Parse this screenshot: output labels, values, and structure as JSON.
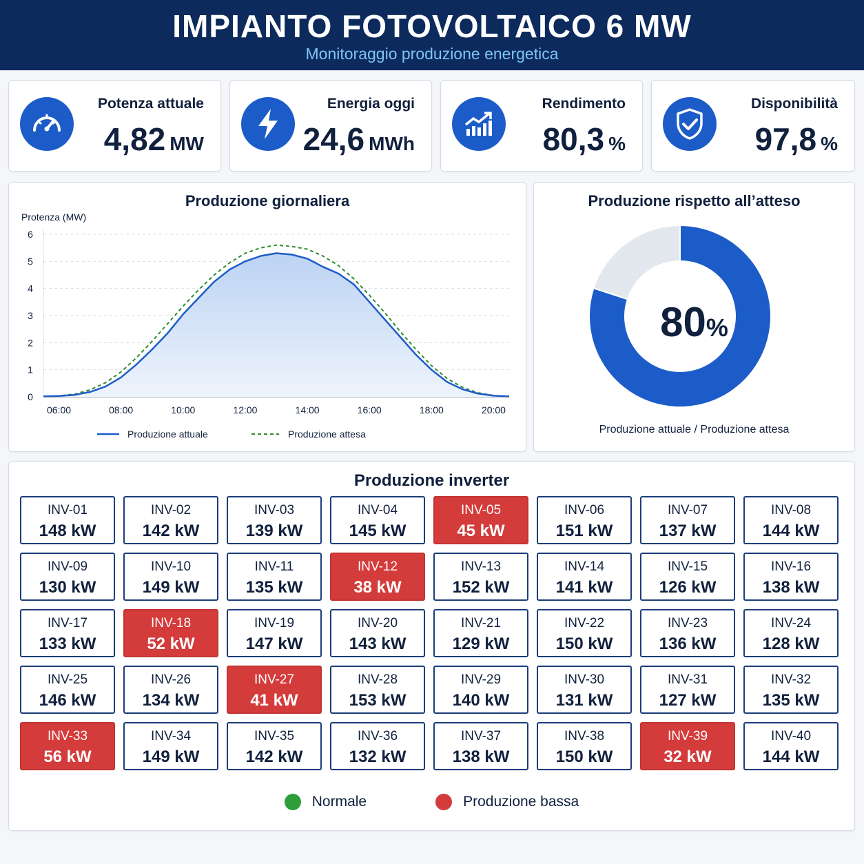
{
  "header": {
    "title": "IMPIANTO FOTOVOLTAICO 6 MW",
    "subtitle": "Monitoraggio produzione energetica"
  },
  "kpis": [
    {
      "label": "Potenza attuale",
      "value": "4,82",
      "unit": "MW",
      "icon": "gauge-icon"
    },
    {
      "label": "Energia oggi",
      "value": "24,6",
      "unit": "MWh",
      "icon": "lightning-icon"
    },
    {
      "label": "Rendimento",
      "value": "80,3",
      "unit": "%",
      "icon": "trend-chart-icon"
    },
    {
      "label": "Disponibilità",
      "value": "97,8",
      "unit": "%",
      "icon": "shield-check-icon"
    }
  ],
  "colors": {
    "accent": "#1c5cc8",
    "header": "#0d2a5c",
    "low": "#d43b3b",
    "normal": "#2e9e3a",
    "expected": "#2e8b2e"
  },
  "chart_data": [
    {
      "type": "area",
      "title": "Produzione giornaliera",
      "ylabel": "Protenza (MW)",
      "xlabel": "",
      "ylim": [
        0,
        6
      ],
      "yticks": [
        "0",
        "1",
        "2",
        "3",
        "4",
        "5",
        "6"
      ],
      "xticks": [
        "06:00",
        "08:00",
        "10:00",
        "12:00",
        "14:00",
        "16:00",
        "18:00",
        "20:00"
      ],
      "grid": true,
      "legend": "bottom",
      "x": [
        "05:30",
        "06:00",
        "06:30",
        "07:00",
        "07:30",
        "08:00",
        "08:30",
        "09:00",
        "09:30",
        "10:00",
        "10:30",
        "11:00",
        "11:30",
        "12:00",
        "12:30",
        "13:00",
        "13:30",
        "14:00",
        "14:30",
        "15:00",
        "15:30",
        "16:00",
        "16:30",
        "17:00",
        "17:30",
        "18:00",
        "18:30",
        "19:00",
        "19:30",
        "20:00",
        "20:30"
      ],
      "series": [
        {
          "name": "Produzione attuale",
          "values": [
            0.02,
            0.03,
            0.07,
            0.18,
            0.38,
            0.72,
            1.2,
            1.75,
            2.35,
            3.05,
            3.65,
            4.25,
            4.7,
            5.0,
            5.2,
            5.3,
            5.25,
            5.1,
            4.8,
            4.55,
            4.15,
            3.5,
            2.85,
            2.2,
            1.55,
            1.0,
            0.55,
            0.28,
            0.12,
            0.04,
            0.02
          ]
        },
        {
          "name": "Produzione attesa",
          "values": [
            0.02,
            0.04,
            0.1,
            0.26,
            0.52,
            0.92,
            1.45,
            2.05,
            2.7,
            3.35,
            3.95,
            4.5,
            4.95,
            5.3,
            5.5,
            5.6,
            5.55,
            5.45,
            5.2,
            4.85,
            4.35,
            3.75,
            3.1,
            2.4,
            1.75,
            1.15,
            0.68,
            0.35,
            0.15,
            0.05,
            0.02
          ]
        }
      ]
    },
    {
      "type": "pie",
      "title": "Produzione rispetto all’atteso",
      "center_value": "80",
      "center_unit": "%",
      "caption": "Produzione attuale / Produzione attesa",
      "values": [
        80,
        20
      ]
    }
  ],
  "inverters": {
    "title": "Produzione inverter",
    "items": [
      {
        "id": "INV-01",
        "value": "148 kW",
        "low": false
      },
      {
        "id": "INV-02",
        "value": "142 kW",
        "low": false
      },
      {
        "id": "INV-03",
        "value": "139 kW",
        "low": false
      },
      {
        "id": "INV-04",
        "value": "145 kW",
        "low": false
      },
      {
        "id": "INV-05",
        "value": "45 kW",
        "low": true
      },
      {
        "id": "INV-06",
        "value": "151 kW",
        "low": false
      },
      {
        "id": "INV-07",
        "value": "137 kW",
        "low": false
      },
      {
        "id": "INV-08",
        "value": "144 kW",
        "low": false
      },
      {
        "id": "INV-09",
        "value": "130 kW",
        "low": false
      },
      {
        "id": "INV-10",
        "value": "149 kW",
        "low": false
      },
      {
        "id": "INV-11",
        "value": "135 kW",
        "low": false
      },
      {
        "id": "INV-12",
        "value": "38 kW",
        "low": true
      },
      {
        "id": "INV-13",
        "value": "152 kW",
        "low": false
      },
      {
        "id": "INV-14",
        "value": "141 kW",
        "low": false
      },
      {
        "id": "INV-15",
        "value": "126 kW",
        "low": false
      },
      {
        "id": "INV-16",
        "value": "138 kW",
        "low": false
      },
      {
        "id": "INV-17",
        "value": "133 kW",
        "low": false
      },
      {
        "id": "INV-18",
        "value": "52 kW",
        "low": true
      },
      {
        "id": "INV-19",
        "value": "147 kW",
        "low": false
      },
      {
        "id": "INV-20",
        "value": "143 kW",
        "low": false
      },
      {
        "id": "INV-21",
        "value": "129 kW",
        "low": false
      },
      {
        "id": "INV-22",
        "value": "150 kW",
        "low": false
      },
      {
        "id": "INV-23",
        "value": "136 kW",
        "low": false
      },
      {
        "id": "INV-24",
        "value": "128 kW",
        "low": false
      },
      {
        "id": "INV-25",
        "value": "146 kW",
        "low": false
      },
      {
        "id": "INV-26",
        "value": "134 kW",
        "low": false
      },
      {
        "id": "INV-27",
        "value": "41 kW",
        "low": true
      },
      {
        "id": "INV-28",
        "value": "153 kW",
        "low": false
      },
      {
        "id": "INV-29",
        "value": "140 kW",
        "low": false
      },
      {
        "id": "INV-30",
        "value": "131 kW",
        "low": false
      },
      {
        "id": "INV-31",
        "value": "127 kW",
        "low": false
      },
      {
        "id": "INV-32",
        "value": "135 kW",
        "low": false
      },
      {
        "id": "INV-33",
        "value": "56 kW",
        "low": true
      },
      {
        "id": "INV-34",
        "value": "149 kW",
        "low": false
      },
      {
        "id": "INV-35",
        "value": "142 kW",
        "low": false
      },
      {
        "id": "INV-36",
        "value": "132 kW",
        "low": false
      },
      {
        "id": "INV-37",
        "value": "138 kW",
        "low": false
      },
      {
        "id": "INV-38",
        "value": "150 kW",
        "low": false
      },
      {
        "id": "INV-39",
        "value": "32 kW",
        "low": true
      },
      {
        "id": "INV-40",
        "value": "144 kW",
        "low": false
      }
    ],
    "legend": {
      "normal": "Normale",
      "low": "Produzione bassa"
    }
  }
}
